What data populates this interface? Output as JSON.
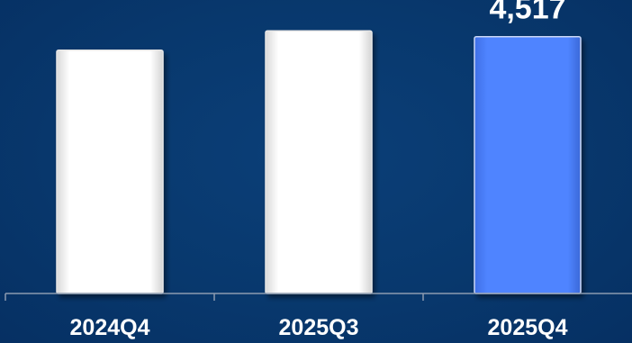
{
  "chart_data": {
    "type": "bar",
    "categories": [
      "2024Q4",
      "2025Q3",
      "2025Q4"
    ],
    "values": [
      4280,
      4620,
      4517
    ],
    "data_labels": [
      "",
      "",
      "4,517"
    ],
    "title": "",
    "xlabel": "",
    "ylabel": "",
    "ylim": [
      0,
      4750
    ],
    "grid": false,
    "legend": "none",
    "colors": {
      "background": "#08386d",
      "bar_default": "#ffffff",
      "bar_highlight": "#4a7dff",
      "axis": "#8c9bb0",
      "text": "#ffffff"
    }
  }
}
